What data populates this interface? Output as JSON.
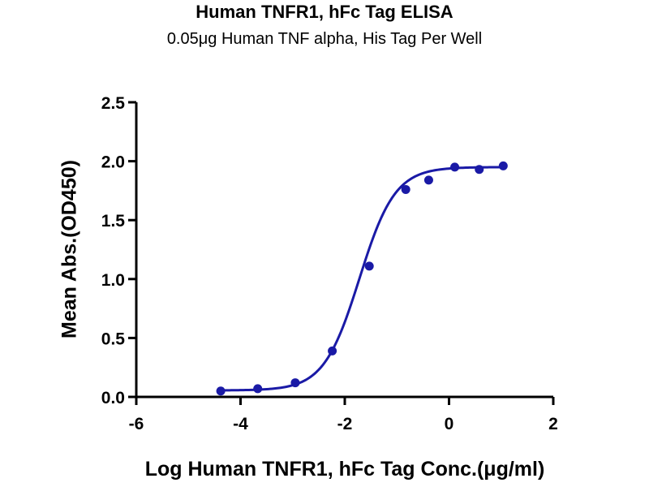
{
  "chart_data": {
    "type": "scatter",
    "title": "Human TNFR1, hFc Tag ELISA",
    "subtitle": "0.05μg Human TNF alpha, His Tag Per Well",
    "xlabel": "Log Human TNFR1, hFc Tag Conc.(μg/ml)",
    "ylabel": "Mean Abs.(OD450)",
    "xlim": [
      -6,
      2
    ],
    "ylim": [
      0,
      2.5
    ],
    "xticks": [
      -6,
      -4,
      -2,
      0,
      2
    ],
    "yticks": [
      0.0,
      0.5,
      1.0,
      1.5,
      2.0,
      2.5
    ],
    "xtick_labels": [
      "-6",
      "-4",
      "-2",
      "0",
      "2"
    ],
    "ytick_labels": [
      "0.0",
      "0.5",
      "1.0",
      "1.5",
      "2.0",
      "2.5"
    ],
    "grid": false,
    "series": [
      {
        "color": "#1a1aa6",
        "points": [
          {
            "x": -4.38,
            "y": 0.05
          },
          {
            "x": -3.67,
            "y": 0.07
          },
          {
            "x": -2.95,
            "y": 0.12
          },
          {
            "x": -2.24,
            "y": 0.39
          },
          {
            "x": -1.53,
            "y": 1.11
          },
          {
            "x": -0.83,
            "y": 1.76
          },
          {
            "x": -0.39,
            "y": 1.84
          },
          {
            "x": 0.11,
            "y": 1.95
          },
          {
            "x": 0.58,
            "y": 1.93
          },
          {
            "x": 1.04,
            "y": 1.96
          }
        ],
        "fit": {
          "model": "4PL",
          "bottom": 0.055,
          "top": 1.95,
          "logEC50": -1.72,
          "hillslope": 1.27,
          "x_range": [
            -4.38,
            1.04
          ]
        }
      }
    ]
  }
}
